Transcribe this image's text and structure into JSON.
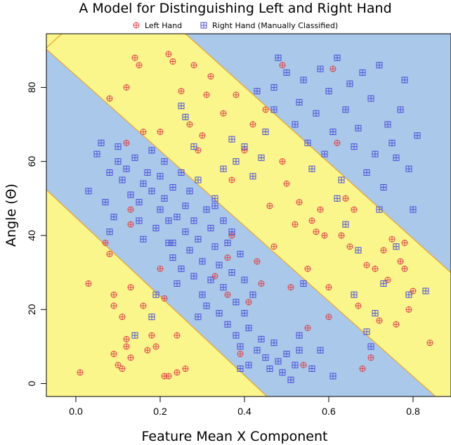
{
  "chart_data": {
    "type": "scatter",
    "title": "A Model for Distinguishing Left and Right Hand",
    "xlabel": "Feature Mean X Component",
    "ylabel": "Angle (Θ)",
    "xlim": [
      -0.07,
      0.89
    ],
    "ylim": [
      -3.5,
      94.5
    ],
    "x_ticks": [
      "0.0",
      "0.2",
      "0.4",
      "0.6",
      "0.8"
    ],
    "y_ticks": [
      "0",
      "20",
      "40",
      "60",
      "80"
    ],
    "grid": false,
    "legend_position": "top-center",
    "background_regions": [
      {
        "class": "Right Hand",
        "color": "#a9c8ea"
      },
      {
        "class": "Left Hand",
        "color": "#fbf68c"
      }
    ],
    "boundary_color": "#e6a83a",
    "series": [
      {
        "name": "Left Hand",
        "color": "#e0434a",
        "marker": "circle-plus",
        "points": [
          [
            0.01,
            3
          ],
          [
            0.03,
            27
          ],
          [
            0.07,
            38
          ],
          [
            0.08,
            77
          ],
          [
            0.08,
            35
          ],
          [
            0.09,
            21
          ],
          [
            0.09,
            24
          ],
          [
            0.09,
            8
          ],
          [
            0.1,
            5
          ],
          [
            0.11,
            4
          ],
          [
            0.11,
            18
          ],
          [
            0.12,
            12
          ],
          [
            0.12,
            10
          ],
          [
            0.13,
            7
          ],
          [
            0.13,
            26
          ],
          [
            0.13,
            43
          ],
          [
            0.13,
            47
          ],
          [
            0.12,
            65
          ],
          [
            0.12,
            80
          ],
          [
            0.14,
            88
          ],
          [
            0.15,
            86
          ],
          [
            0.16,
            68
          ],
          [
            0.16,
            21
          ],
          [
            0.17,
            9
          ],
          [
            0.18,
            13
          ],
          [
            0.19,
            10
          ],
          [
            0.2,
            68
          ],
          [
            0.2,
            31
          ],
          [
            0.21,
            2
          ],
          [
            0.21,
            23
          ],
          [
            0.22,
            2
          ],
          [
            0.22,
            89
          ],
          [
            0.23,
            87
          ],
          [
            0.24,
            13
          ],
          [
            0.24,
            3
          ],
          [
            0.25,
            79
          ],
          [
            0.26,
            4
          ],
          [
            0.27,
            70
          ],
          [
            0.28,
            86
          ],
          [
            0.29,
            63
          ],
          [
            0.3,
            67
          ],
          [
            0.31,
            78
          ],
          [
            0.32,
            83
          ],
          [
            0.33,
            29
          ],
          [
            0.35,
            73
          ],
          [
            0.36,
            34
          ],
          [
            0.36,
            24
          ],
          [
            0.37,
            55
          ],
          [
            0.37,
            40
          ],
          [
            0.38,
            78
          ],
          [
            0.39,
            8
          ],
          [
            0.4,
            63
          ],
          [
            0.41,
            22
          ],
          [
            0.42,
            70
          ],
          [
            0.43,
            33
          ],
          [
            0.44,
            27
          ],
          [
            0.45,
            74
          ],
          [
            0.46,
            48
          ],
          [
            0.47,
            37
          ],
          [
            0.49,
            86
          ],
          [
            0.49,
            60
          ],
          [
            0.5,
            54
          ],
          [
            0.51,
            26
          ],
          [
            0.52,
            43
          ],
          [
            0.53,
            49
          ],
          [
            0.54,
            5
          ],
          [
            0.55,
            31
          ],
          [
            0.55,
            15
          ],
          [
            0.56,
            44
          ],
          [
            0.57,
            41
          ],
          [
            0.58,
            47
          ],
          [
            0.59,
            40
          ],
          [
            0.6,
            26
          ],
          [
            0.6,
            18
          ],
          [
            0.61,
            85
          ],
          [
            0.62,
            65
          ],
          [
            0.63,
            40
          ],
          [
            0.64,
            50
          ],
          [
            0.65,
            37
          ],
          [
            0.66,
            47
          ],
          [
            0.67,
            21
          ],
          [
            0.68,
            4
          ],
          [
            0.69,
            32
          ],
          [
            0.7,
            7
          ],
          [
            0.71,
            31
          ],
          [
            0.72,
            17
          ],
          [
            0.73,
            36
          ],
          [
            0.74,
            28
          ],
          [
            0.75,
            39
          ],
          [
            0.76,
            16
          ],
          [
            0.77,
            33
          ],
          [
            0.78,
            31
          ],
          [
            0.78,
            38
          ],
          [
            0.79,
            20
          ],
          [
            0.8,
            25
          ],
          [
            0.84,
            11
          ]
        ]
      },
      {
        "name": "Right Hand (Manually Classified)",
        "color": "#4a4fd8",
        "marker": "square-plus",
        "points": [
          [
            0.03,
            52
          ],
          [
            0.05,
            62
          ],
          [
            0.06,
            65
          ],
          [
            0.07,
            49
          ],
          [
            0.08,
            41
          ],
          [
            0.08,
            57
          ],
          [
            0.09,
            45
          ],
          [
            0.1,
            60
          ],
          [
            0.1,
            64
          ],
          [
            0.11,
            55
          ],
          [
            0.12,
            58
          ],
          [
            0.13,
            51
          ],
          [
            0.14,
            61
          ],
          [
            0.15,
            44
          ],
          [
            0.15,
            49
          ],
          [
            0.16,
            54
          ],
          [
            0.16,
            39
          ],
          [
            0.17,
            57
          ],
          [
            0.18,
            52
          ],
          [
            0.18,
            63
          ],
          [
            0.19,
            42
          ],
          [
            0.19,
            24
          ],
          [
            0.2,
            47
          ],
          [
            0.2,
            56
          ],
          [
            0.21,
            50
          ],
          [
            0.21,
            60
          ],
          [
            0.22,
            44
          ],
          [
            0.22,
            38
          ],
          [
            0.23,
            53
          ],
          [
            0.23,
            34
          ],
          [
            0.24,
            45
          ],
          [
            0.24,
            27
          ],
          [
            0.25,
            57
          ],
          [
            0.25,
            31
          ],
          [
            0.26,
            48
          ],
          [
            0.26,
            41
          ],
          [
            0.27,
            36
          ],
          [
            0.27,
            52
          ],
          [
            0.28,
            44
          ],
          [
            0.28,
            29
          ],
          [
            0.29,
            39
          ],
          [
            0.29,
            55
          ],
          [
            0.3,
            33
          ],
          [
            0.3,
            24
          ],
          [
            0.31,
            47
          ],
          [
            0.31,
            21
          ],
          [
            0.32,
            42
          ],
          [
            0.32,
            28
          ],
          [
            0.33,
            37
          ],
          [
            0.33,
            50
          ],
          [
            0.34,
            32
          ],
          [
            0.34,
            19
          ],
          [
            0.35,
            44
          ],
          [
            0.35,
            26
          ],
          [
            0.36,
            38
          ],
          [
            0.36,
            16
          ],
          [
            0.37,
            30
          ],
          [
            0.37,
            41
          ],
          [
            0.38,
            22
          ],
          [
            0.38,
            13
          ],
          [
            0.39,
            35
          ],
          [
            0.39,
            10
          ],
          [
            0.4,
            19
          ],
          [
            0.4,
            28
          ],
          [
            0.41,
            15
          ],
          [
            0.41,
            5
          ],
          [
            0.42,
            24
          ],
          [
            0.43,
            9
          ],
          [
            0.44,
            12
          ],
          [
            0.45,
            7
          ],
          [
            0.46,
            4
          ],
          [
            0.47,
            11
          ],
          [
            0.48,
            6
          ],
          [
            0.49,
            3
          ],
          [
            0.5,
            8
          ],
          [
            0.51,
            1
          ],
          [
            0.52,
            5
          ],
          [
            0.53,
            9
          ],
          [
            0.25,
            75
          ],
          [
            0.26,
            72
          ],
          [
            0.28,
            64
          ],
          [
            0.35,
            58
          ],
          [
            0.38,
            60
          ],
          [
            0.4,
            64
          ],
          [
            0.42,
            56
          ],
          [
            0.45,
            68
          ],
          [
            0.47,
            80
          ],
          [
            0.48,
            88
          ],
          [
            0.5,
            84
          ],
          [
            0.52,
            70
          ],
          [
            0.53,
            76
          ],
          [
            0.54,
            82
          ],
          [
            0.55,
            65
          ],
          [
            0.56,
            58
          ],
          [
            0.57,
            73
          ],
          [
            0.58,
            85
          ],
          [
            0.59,
            62
          ],
          [
            0.6,
            79
          ],
          [
            0.61,
            68
          ],
          [
            0.62,
            88
          ],
          [
            0.63,
            55
          ],
          [
            0.64,
            74
          ],
          [
            0.65,
            81
          ],
          [
            0.66,
            64
          ],
          [
            0.67,
            69
          ],
          [
            0.68,
            84
          ],
          [
            0.69,
            57
          ],
          [
            0.7,
            77
          ],
          [
            0.71,
            62
          ],
          [
            0.72,
            86
          ],
          [
            0.73,
            53
          ],
          [
            0.74,
            70
          ],
          [
            0.75,
            65
          ],
          [
            0.76,
            61
          ],
          [
            0.77,
            74
          ],
          [
            0.78,
            82
          ],
          [
            0.79,
            58
          ],
          [
            0.8,
            47
          ],
          [
            0.81,
            67
          ],
          [
            0.79,
            24
          ],
          [
            0.83,
            25
          ],
          [
            0.76,
            37
          ],
          [
            0.73,
            27
          ],
          [
            0.7,
            10
          ],
          [
            0.69,
            14
          ],
          [
            0.61,
            2
          ],
          [
            0.58,
            9
          ],
          [
            0.56,
            4
          ],
          [
            0.62,
            50
          ],
          [
            0.64,
            43
          ],
          [
            0.67,
            36
          ],
          [
            0.72,
            47
          ],
          [
            0.71,
            19
          ],
          [
            0.66,
            24
          ],
          [
            0.54,
            27
          ],
          [
            0.53,
            13
          ],
          [
            0.44,
            61
          ],
          [
            0.39,
            4
          ],
          [
            0.37,
            66
          ],
          [
            0.43,
            79
          ],
          [
            0.47,
            74
          ],
          [
            0.33,
            48
          ],
          [
            0.29,
            18
          ],
          [
            0.23,
            38
          ],
          [
            0.18,
            18
          ],
          [
            0.14,
            13
          ]
        ]
      }
    ]
  }
}
